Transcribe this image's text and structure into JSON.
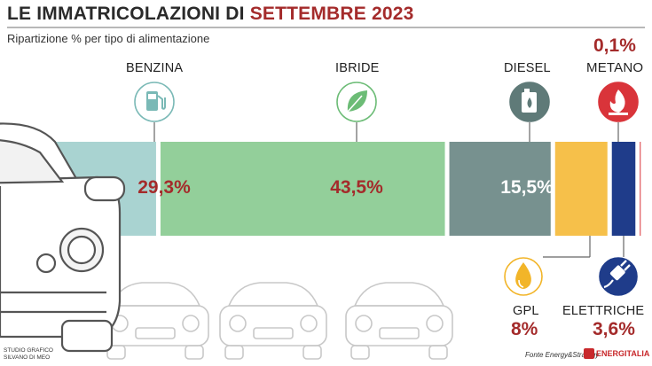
{
  "header": {
    "title_main": "LE IMMATRICOLAZIONI DI ",
    "title_accent": "SETTEMBRE 2023",
    "subtitle": "Ripartizione % per tipo di alimentazione"
  },
  "colors": {
    "benzina": "#a9d3d1",
    "ibride": "#93cf9a",
    "diesel": "#77918f",
    "gpl": "#f6c04a",
    "elettriche": "#1f3c8a",
    "metano": "#d9343a",
    "accent": "#a42b2b"
  },
  "chart_data": {
    "type": "bar",
    "orientation": "horizontal-stacked",
    "title": "LE IMMATRICOLAZIONI DI SETTEMBRE 2023",
    "subtitle": "Ripartizione % per tipo di alimentazione",
    "unit": "%",
    "categories": [
      "BENZINA",
      "IBRIDE",
      "DIESEL",
      "GPL",
      "ELETTRICHE",
      "METANO"
    ],
    "values": [
      29.3,
      43.5,
      15.5,
      8,
      3.6,
      0.1
    ],
    "labels": [
      "29,3%",
      "43,5%",
      "15,5%",
      "8%",
      "3,6%",
      "0,1%"
    ],
    "icons": [
      "fuel-pump-icon",
      "leaf-icon",
      "oil-can-icon",
      "flame-drop-icon",
      "plug-icon",
      "flame-icon"
    ]
  },
  "footer": {
    "credit_line1": "STUDIO GRAFICO",
    "credit_line2": "SILVANO DI MEO",
    "source": "Fonte Energy&Strategy",
    "brand": "ENERGITALIA"
  }
}
